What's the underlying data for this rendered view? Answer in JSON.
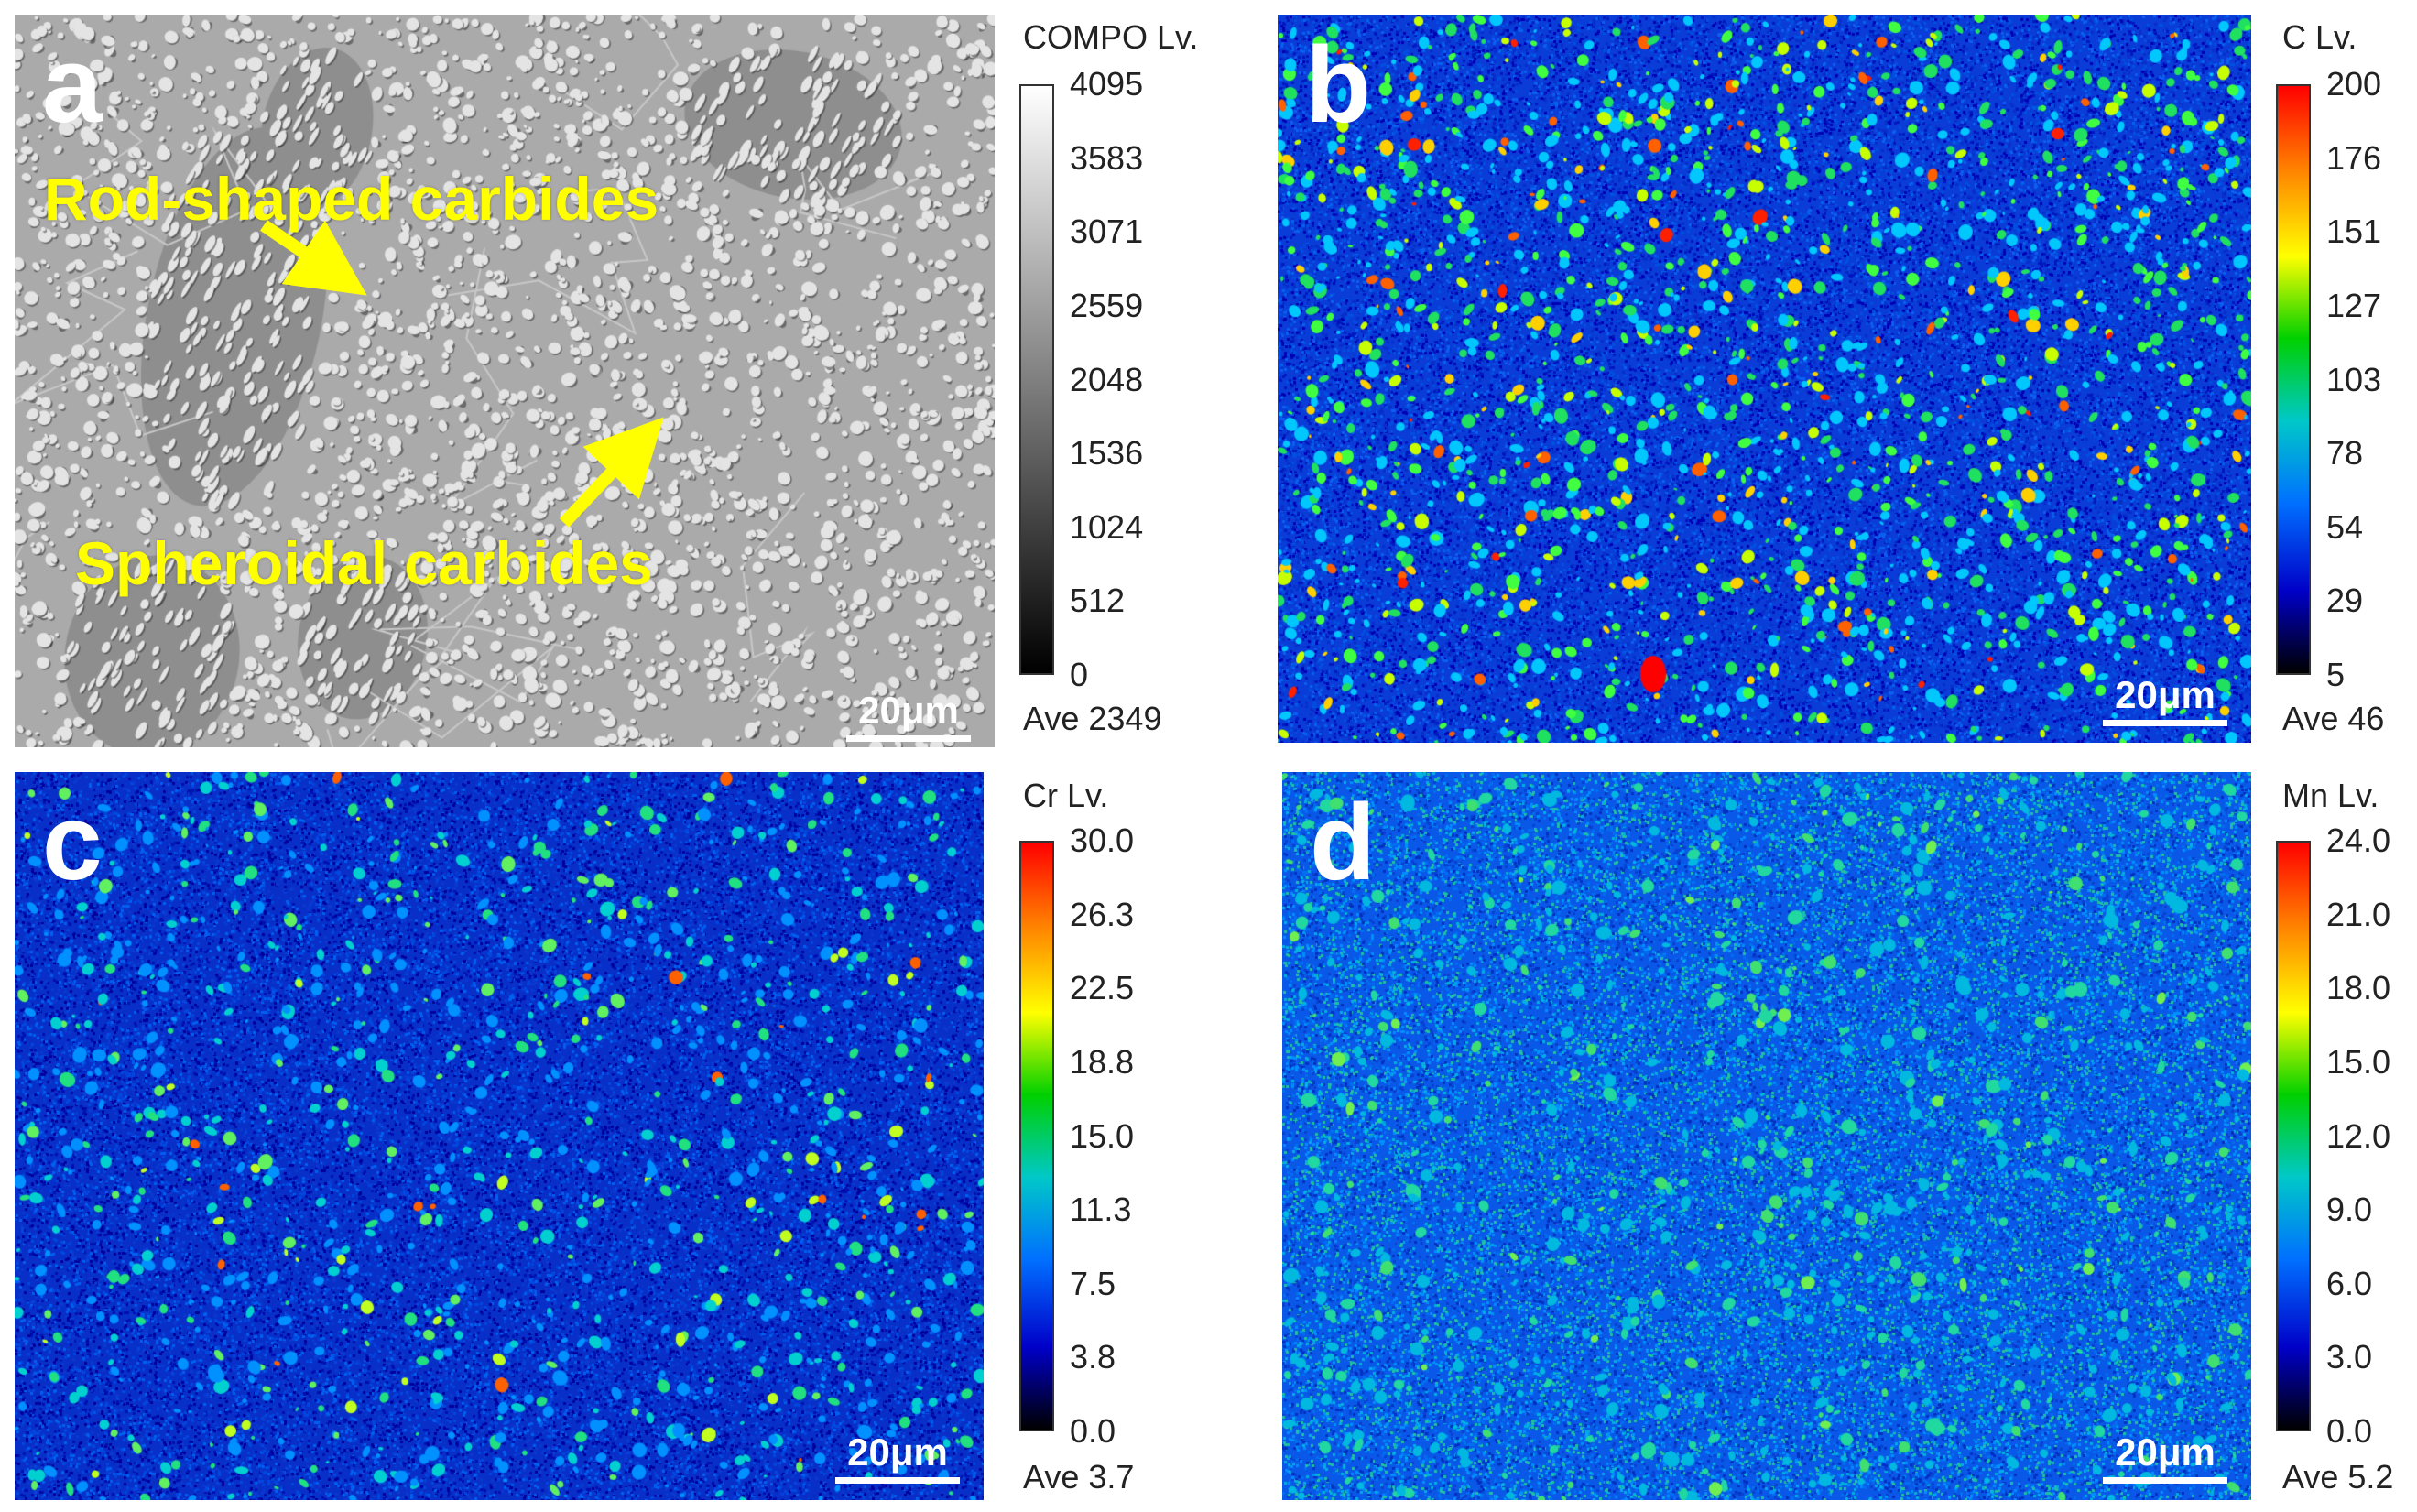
{
  "panels": [
    {
      "letter": "a",
      "kind": "grayscale",
      "colorbar_title": "COMPO Lv.",
      "ticks": [
        "4095",
        "3583",
        "3071",
        "2559",
        "2048",
        "1536",
        "1024",
        "512",
        "0"
      ],
      "average": "Ave 2349",
      "scale_bar": "20μm",
      "annotations": {
        "rod": "Rod-shaped carbides",
        "spheroidal": "Spheroidal carbides"
      },
      "annotation_color": "#ffff00"
    },
    {
      "letter": "b",
      "kind": "rainbow",
      "colorbar_title": "C Lv.",
      "ticks": [
        "200",
        "176",
        "151",
        "127",
        "103",
        "78",
        "54",
        "29",
        "5"
      ],
      "average": "Ave 46",
      "scale_bar": "20μm"
    },
    {
      "letter": "c",
      "kind": "rainbow",
      "colorbar_title": "Cr Lv.",
      "ticks": [
        "30.0",
        "26.3",
        "22.5",
        "18.8",
        "15.0",
        "11.3",
        "7.5",
        "3.8",
        "0.0"
      ],
      "average": "Ave 3.7",
      "scale_bar": "20μm"
    },
    {
      "letter": "d",
      "kind": "rainbow",
      "colorbar_title": "Mn Lv.",
      "ticks": [
        "24.0",
        "21.0",
        "18.0",
        "15.0",
        "12.0",
        "9.0",
        "6.0",
        "3.0",
        "0.0"
      ],
      "average": "Ave 5.2",
      "scale_bar": "20μm"
    }
  ],
  "colors": {
    "rainbow": [
      "#ff0000",
      "#ff8000",
      "#ffff00",
      "#00d000",
      "#00c8c8",
      "#0070ff",
      "#0000c8",
      "#000000"
    ],
    "grayscale": [
      "#ffffff",
      "#000000"
    ]
  }
}
